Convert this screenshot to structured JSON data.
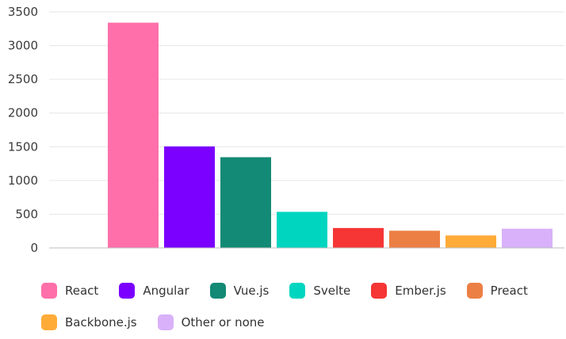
{
  "chart_data": {
    "type": "bar",
    "title": "",
    "xlabel": "",
    "ylabel": "",
    "ylim": [
      0,
      3500
    ],
    "yticks": [
      0,
      500,
      1000,
      1500,
      2000,
      2500,
      3000,
      3500
    ],
    "grid": true,
    "legend_position": "bottom",
    "categories": [
      "React",
      "Angular",
      "Vue.js",
      "Svelte",
      "Ember.js",
      "Preact",
      "Backbone.js",
      "Other or none"
    ],
    "values": [
      3340,
      1505,
      1345,
      535,
      295,
      255,
      185,
      285
    ],
    "colors": [
      "#ff6fa9",
      "#7b00ff",
      "#138a75",
      "#00d5c0",
      "#f63535",
      "#ec7f44",
      "#ffab38",
      "#d8b1fa"
    ],
    "gridline_color": "#e6e6e6",
    "axis_color": "#bdbdbd"
  }
}
